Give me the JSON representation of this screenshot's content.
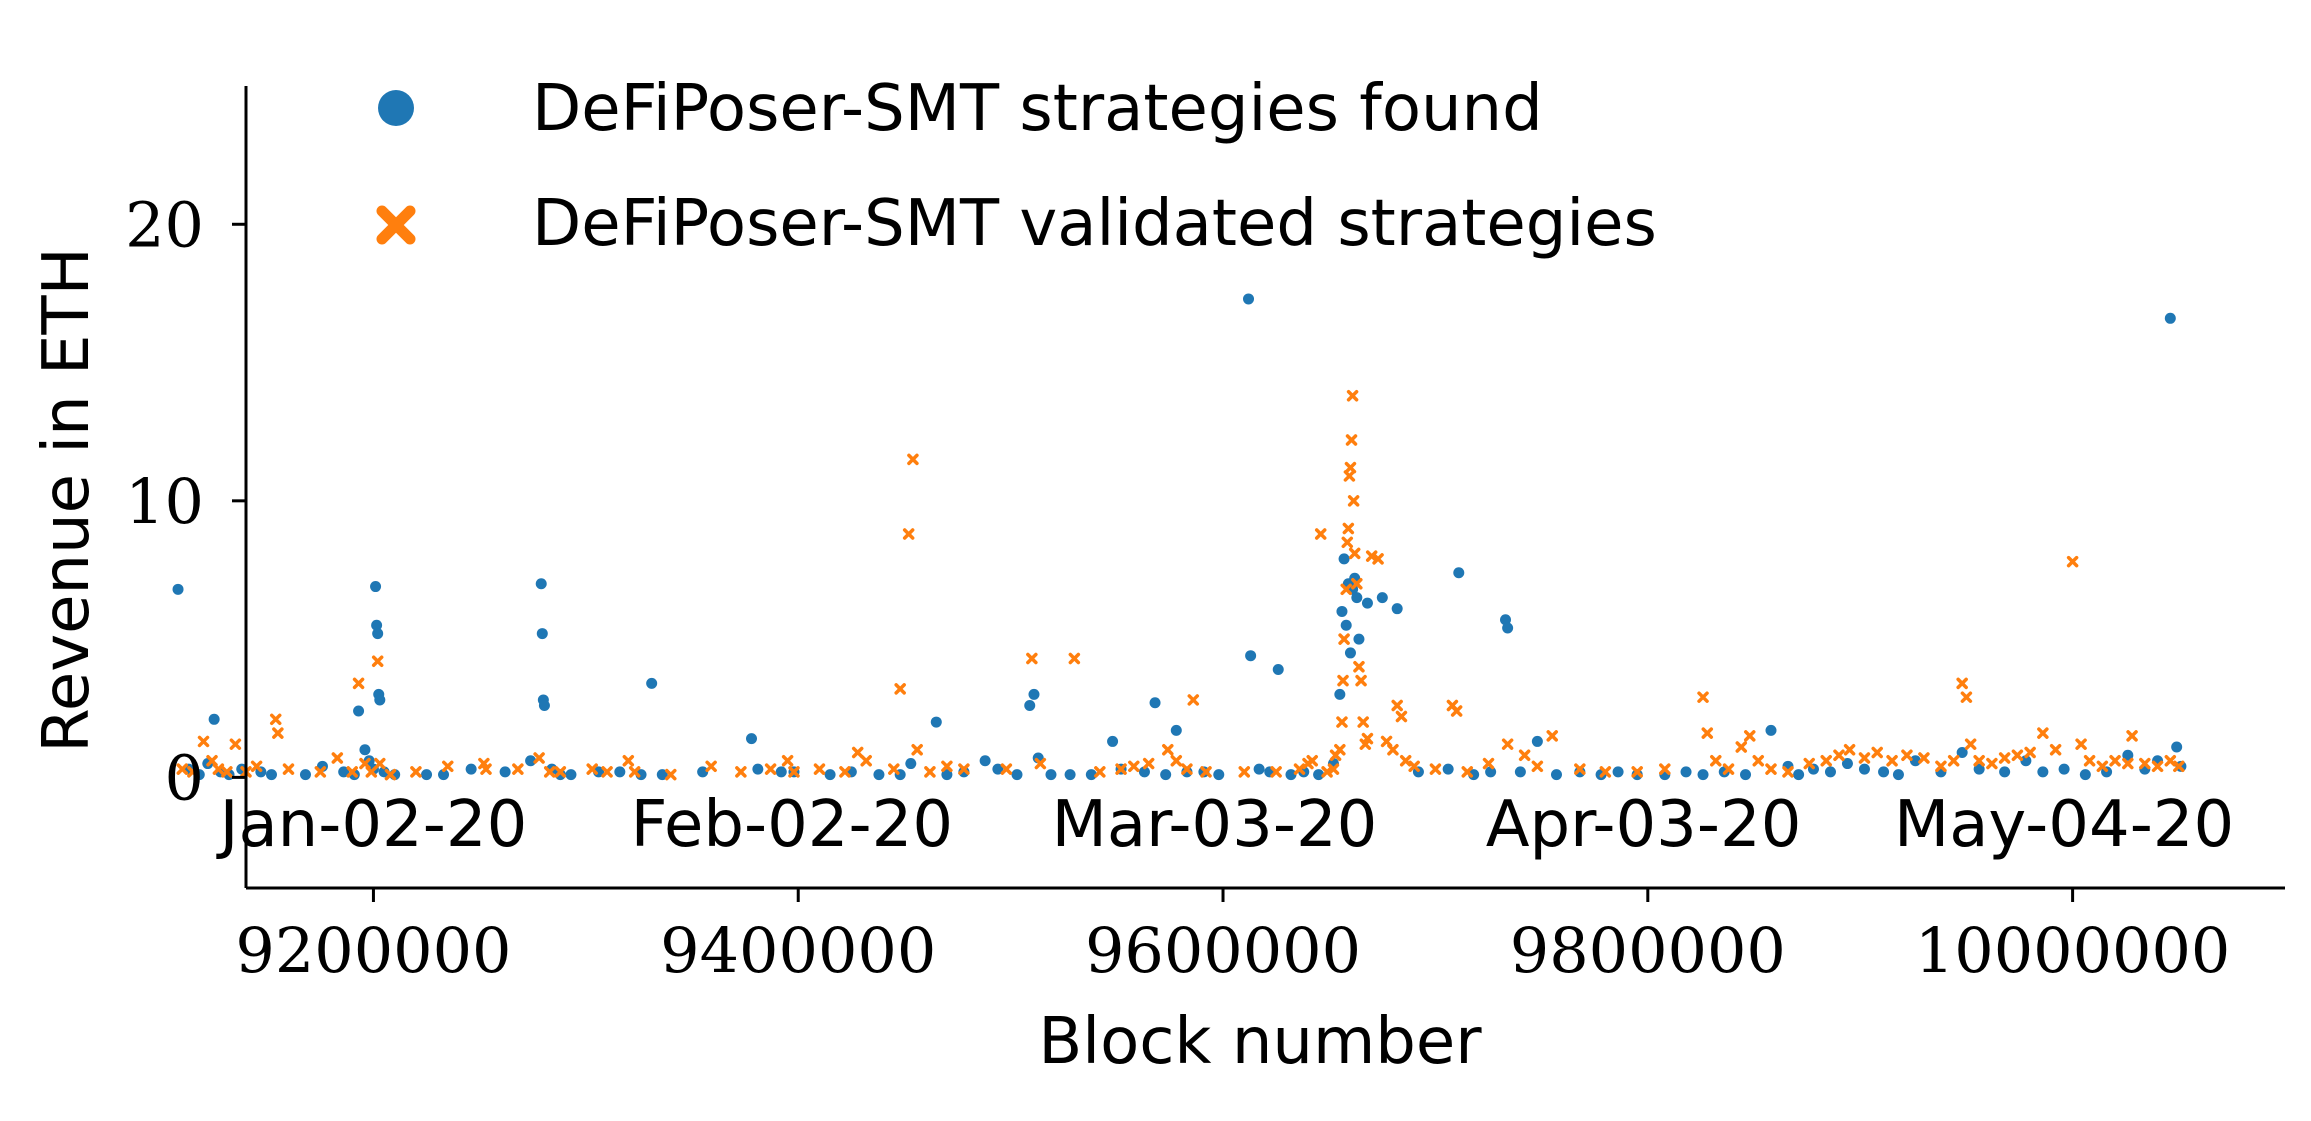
{
  "chart_data": {
    "type": "scatter",
    "xlabel": "Block number",
    "ylabel": "Revenue in ETH",
    "xlim": [
      9140000,
      10100000
    ],
    "ylim": [
      -4,
      25
    ],
    "x_ticks": [
      9200000,
      9400000,
      9600000,
      9800000,
      10000000
    ],
    "x_tick_labels": [
      "9200000",
      "9400000",
      "9600000",
      "9800000",
      "10000000"
    ],
    "y_ticks": [
      0,
      10,
      20
    ],
    "y_tick_labels": [
      "0",
      "10",
      "20"
    ],
    "date_labels": [
      {
        "text": "Jan-02-20",
        "block": 9200000
      },
      {
        "text": "Feb-02-20",
        "block": 9397000
      },
      {
        "text": "Mar-03-20",
        "block": 9596000
      },
      {
        "text": "Apr-03-20",
        "block": 9798000
      },
      {
        "text": "May-04-20",
        "block": 9996000
      }
    ],
    "legend_position": "top-left",
    "grid": false,
    "series": [
      {
        "name": "DeFiPoser-SMT strategies found",
        "marker": "circle",
        "color": "#1f77b4",
        "points": [
          [
            9108000,
            6.8
          ],
          [
            9113000,
            0.3
          ],
          [
            9118000,
            0.1
          ],
          [
            9122000,
            0.5
          ],
          [
            9125000,
            2.1
          ],
          [
            9128000,
            0.2
          ],
          [
            9132000,
            0.1
          ],
          [
            9138000,
            0.3
          ],
          [
            9147000,
            0.2
          ],
          [
            9152000,
            0.1
          ],
          [
            9168000,
            0.1
          ],
          [
            9176000,
            0.4
          ],
          [
            9186000,
            0.2
          ],
          [
            9191000,
            0.1
          ],
          [
            9193000,
            2.4
          ],
          [
            9196000,
            1.0
          ],
          [
            9198000,
            0.6
          ],
          [
            9200000,
            0.3
          ],
          [
            9201000,
            6.9
          ],
          [
            9201500,
            5.5
          ],
          [
            9202000,
            5.2
          ],
          [
            9202500,
            3.0
          ],
          [
            9203000,
            2.8
          ],
          [
            9205000,
            0.2
          ],
          [
            9210000,
            0.1
          ],
          [
            9225000,
            0.1
          ],
          [
            9233000,
            0.1
          ],
          [
            9246000,
            0.3
          ],
          [
            9262000,
            0.2
          ],
          [
            9274000,
            0.6
          ],
          [
            9279000,
            7.0
          ],
          [
            9279500,
            5.2
          ],
          [
            9280000,
            2.8
          ],
          [
            9280500,
            2.6
          ],
          [
            9284000,
            0.3
          ],
          [
            9288000,
            0.1
          ],
          [
            9293000,
            0.1
          ],
          [
            9306000,
            0.2
          ],
          [
            9316000,
            0.2
          ],
          [
            9326000,
            0.1
          ],
          [
            9331000,
            3.4
          ],
          [
            9336000,
            0.1
          ],
          [
            9355000,
            0.2
          ],
          [
            9378000,
            1.4
          ],
          [
            9381000,
            0.3
          ],
          [
            9392000,
            0.2
          ],
          [
            9398000,
            0.2
          ],
          [
            9415000,
            0.1
          ],
          [
            9425000,
            0.2
          ],
          [
            9438000,
            0.1
          ],
          [
            9448000,
            0.1
          ],
          [
            9453000,
            0.5
          ],
          [
            9465000,
            2.0
          ],
          [
            9470000,
            0.1
          ],
          [
            9478000,
            0.2
          ],
          [
            9488000,
            0.6
          ],
          [
            9494000,
            0.3
          ],
          [
            9503000,
            0.1
          ],
          [
            9509000,
            2.6
          ],
          [
            9511000,
            3.0
          ],
          [
            9513000,
            0.7
          ],
          [
            9519000,
            0.1
          ],
          [
            9528000,
            0.1
          ],
          [
            9538000,
            0.1
          ],
          [
            9548000,
            1.3
          ],
          [
            9552000,
            0.3
          ],
          [
            9563000,
            0.2
          ],
          [
            9568000,
            2.7
          ],
          [
            9573000,
            0.1
          ],
          [
            9578000,
            1.7
          ],
          [
            9583000,
            0.2
          ],
          [
            9591000,
            0.2
          ],
          [
            9598000,
            0.1
          ],
          [
            9612000,
            17.3
          ],
          [
            9613000,
            4.4
          ],
          [
            9617000,
            0.3
          ],
          [
            9622000,
            0.2
          ],
          [
            9626000,
            3.9
          ],
          [
            9632000,
            0.1
          ],
          [
            9638000,
            0.2
          ],
          [
            9645000,
            0.1
          ],
          [
            9652000,
            0.5
          ],
          [
            9655000,
            3.0
          ],
          [
            9656000,
            6.0
          ],
          [
            9657000,
            7.9
          ],
          [
            9658000,
            5.5
          ],
          [
            9659000,
            7.0
          ],
          [
            9660000,
            4.5
          ],
          [
            9661000,
            6.8
          ],
          [
            9662000,
            7.2
          ],
          [
            9663000,
            6.5
          ],
          [
            9664000,
            5.0
          ],
          [
            9668000,
            6.3
          ],
          [
            9675000,
            6.5
          ],
          [
            9682000,
            6.1
          ],
          [
            9692000,
            0.2
          ],
          [
            9706000,
            0.3
          ],
          [
            9711000,
            7.4
          ],
          [
            9718000,
            0.1
          ],
          [
            9726000,
            0.2
          ],
          [
            9733000,
            5.7
          ],
          [
            9734000,
            5.4
          ],
          [
            9740000,
            0.2
          ],
          [
            9748000,
            1.3
          ],
          [
            9757000,
            0.1
          ],
          [
            9768000,
            0.2
          ],
          [
            9778000,
            0.1
          ],
          [
            9786000,
            0.2
          ],
          [
            9795000,
            0.1
          ],
          [
            9808000,
            0.1
          ],
          [
            9818000,
            0.2
          ],
          [
            9826000,
            0.1
          ],
          [
            9836000,
            0.2
          ],
          [
            9846000,
            0.1
          ],
          [
            9858000,
            1.7
          ],
          [
            9866000,
            0.4
          ],
          [
            9871000,
            0.1
          ],
          [
            9878000,
            0.3
          ],
          [
            9886000,
            0.2
          ],
          [
            9894000,
            0.5
          ],
          [
            9902000,
            0.3
          ],
          [
            9911000,
            0.2
          ],
          [
            9918000,
            0.1
          ],
          [
            9926000,
            0.6
          ],
          [
            9938000,
            0.2
          ],
          [
            9948000,
            0.9
          ],
          [
            9956000,
            0.3
          ],
          [
            9968000,
            0.2
          ],
          [
            9978000,
            0.6
          ],
          [
            9986000,
            0.2
          ],
          [
            9996000,
            0.3
          ],
          [
            10006000,
            0.1
          ],
          [
            10016000,
            0.2
          ],
          [
            10026000,
            0.8
          ],
          [
            10034000,
            0.3
          ],
          [
            10040000,
            0.6
          ],
          [
            10046000,
            16.6
          ],
          [
            10049000,
            1.1
          ],
          [
            10051000,
            0.4
          ]
        ]
      },
      {
        "name": "DeFiPoser-SMT validated strategies",
        "marker": "x",
        "color": "#ff7f0e",
        "points": [
          [
            9110000,
            0.3
          ],
          [
            9115000,
            0.2
          ],
          [
            9120000,
            1.3
          ],
          [
            9124000,
            0.6
          ],
          [
            9127000,
            0.3
          ],
          [
            9131000,
            0.2
          ],
          [
            9135000,
            1.2
          ],
          [
            9140000,
            0.2
          ],
          [
            9145000,
            0.4
          ],
          [
            9154000,
            2.1
          ],
          [
            9155000,
            1.6
          ],
          [
            9160000,
            0.3
          ],
          [
            9175000,
            0.2
          ],
          [
            9183000,
            0.7
          ],
          [
            9190000,
            0.2
          ],
          [
            9193000,
            3.4
          ],
          [
            9196000,
            0.5
          ],
          [
            9199000,
            0.2
          ],
          [
            9202000,
            4.2
          ],
          [
            9203000,
            0.5
          ],
          [
            9208000,
            0.1
          ],
          [
            9220000,
            0.2
          ],
          [
            9235000,
            0.4
          ],
          [
            9252000,
            0.5
          ],
          [
            9253000,
            0.3
          ],
          [
            9268000,
            0.3
          ],
          [
            9278000,
            0.7
          ],
          [
            9283000,
            0.2
          ],
          [
            9288000,
            0.2
          ],
          [
            9303000,
            0.3
          ],
          [
            9310000,
            0.2
          ],
          [
            9320000,
            0.6
          ],
          [
            9323000,
            0.2
          ],
          [
            9340000,
            0.1
          ],
          [
            9359000,
            0.4
          ],
          [
            9373000,
            0.2
          ],
          [
            9387000,
            0.3
          ],
          [
            9395000,
            0.6
          ],
          [
            9398000,
            0.2
          ],
          [
            9410000,
            0.3
          ],
          [
            9422000,
            0.2
          ],
          [
            9428000,
            0.9
          ],
          [
            9432000,
            0.6
          ],
          [
            9445000,
            0.3
          ],
          [
            9448000,
            3.2
          ],
          [
            9452000,
            8.8
          ],
          [
            9454000,
            11.5
          ],
          [
            9456000,
            1.0
          ],
          [
            9462000,
            0.2
          ],
          [
            9470000,
            0.4
          ],
          [
            9478000,
            0.3
          ],
          [
            9498000,
            0.3
          ],
          [
            9510000,
            4.3
          ],
          [
            9514000,
            0.5
          ],
          [
            9530000,
            4.3
          ],
          [
            9542000,
            0.2
          ],
          [
            9552000,
            0.3
          ],
          [
            9558000,
            0.4
          ],
          [
            9565000,
            0.5
          ],
          [
            9574000,
            1.0
          ],
          [
            9578000,
            0.6
          ],
          [
            9583000,
            0.3
          ],
          [
            9586000,
            2.8
          ],
          [
            9592000,
            0.2
          ],
          [
            9610000,
            0.2
          ],
          [
            9625000,
            0.2
          ],
          [
            9636000,
            0.3
          ],
          [
            9640000,
            0.5
          ],
          [
            9642000,
            0.6
          ],
          [
            9646000,
            8.8
          ],
          [
            9649000,
            0.2
          ],
          [
            9652000,
            0.3
          ],
          [
            9653000,
            0.8
          ],
          [
            9655000,
            1.0
          ],
          [
            9656000,
            2.0
          ],
          [
            9656500,
            3.5
          ],
          [
            9657000,
            5.0
          ],
          [
            9658000,
            6.8
          ],
          [
            9658500,
            8.5
          ],
          [
            9659000,
            9.0
          ],
          [
            9659500,
            10.9
          ],
          [
            9660000,
            11.2
          ],
          [
            9660500,
            12.2
          ],
          [
            9661000,
            13.8
          ],
          [
            9661500,
            10.0
          ],
          [
            9662000,
            8.1
          ],
          [
            9663000,
            7.0
          ],
          [
            9664000,
            4.0
          ],
          [
            9665000,
            3.5
          ],
          [
            9666000,
            2.0
          ],
          [
            9667000,
            1.2
          ],
          [
            9668000,
            1.4
          ],
          [
            9670000,
            8.0
          ],
          [
            9673000,
            7.9
          ],
          [
            9677000,
            1.3
          ],
          [
            9680000,
            1.0
          ],
          [
            9682000,
            2.6
          ],
          [
            9684000,
            2.2
          ],
          [
            9686000,
            0.6
          ],
          [
            9690000,
            0.4
          ],
          [
            9700000,
            0.3
          ],
          [
            9708000,
            2.6
          ],
          [
            9710000,
            2.4
          ],
          [
            9715000,
            0.2
          ],
          [
            9725000,
            0.5
          ],
          [
            9734000,
            1.2
          ],
          [
            9742000,
            0.8
          ],
          [
            9748000,
            0.4
          ],
          [
            9755000,
            1.5
          ],
          [
            9768000,
            0.3
          ],
          [
            9780000,
            0.2
          ],
          [
            9795000,
            0.2
          ],
          [
            9808000,
            0.3
          ],
          [
            9826000,
            2.9
          ],
          [
            9828000,
            1.6
          ],
          [
            9832000,
            0.6
          ],
          [
            9838000,
            0.3
          ],
          [
            9844000,
            1.1
          ],
          [
            9848000,
            1.5
          ],
          [
            9852000,
            0.6
          ],
          [
            9858000,
            0.3
          ],
          [
            9866000,
            0.2
          ],
          [
            9876000,
            0.5
          ],
          [
            9884000,
            0.6
          ],
          [
            9890000,
            0.8
          ],
          [
            9895000,
            1.0
          ],
          [
            9902000,
            0.7
          ],
          [
            9908000,
            0.9
          ],
          [
            9915000,
            0.6
          ],
          [
            9922000,
            0.8
          ],
          [
            9930000,
            0.7
          ],
          [
            9938000,
            0.4
          ],
          [
            9944000,
            0.6
          ],
          [
            9948000,
            3.4
          ],
          [
            9950000,
            2.9
          ],
          [
            9952000,
            1.2
          ],
          [
            9956000,
            0.6
          ],
          [
            9962000,
            0.5
          ],
          [
            9968000,
            0.7
          ],
          [
            9974000,
            0.8
          ],
          [
            9980000,
            0.9
          ],
          [
            9986000,
            1.6
          ],
          [
            9992000,
            1.0
          ],
          [
            10000000,
            7.8
          ],
          [
            10004000,
            1.2
          ],
          [
            10008000,
            0.6
          ],
          [
            10014000,
            0.4
          ],
          [
            10020000,
            0.6
          ],
          [
            10026000,
            0.5
          ],
          [
            10028000,
            1.5
          ],
          [
            10034000,
            0.5
          ],
          [
            10040000,
            0.4
          ],
          [
            10046000,
            0.6
          ],
          [
            10050000,
            0.4
          ]
        ]
      }
    ]
  }
}
